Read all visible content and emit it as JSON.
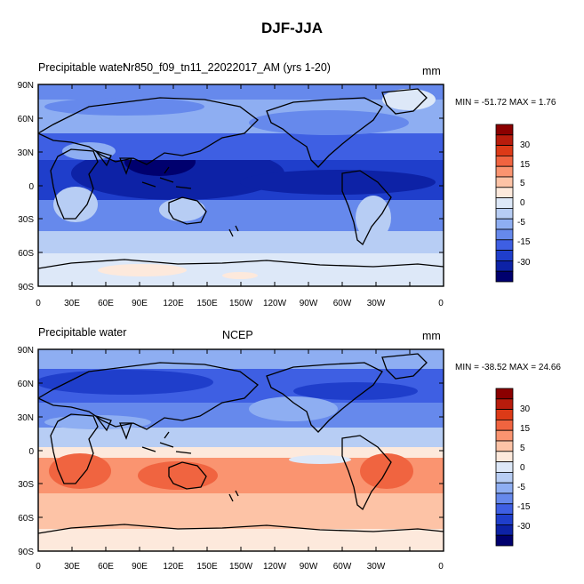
{
  "figure": {
    "title": "DJF-JJA"
  },
  "panels": [
    {
      "left_label": "Precipitable water",
      "center_label": "Nr850_f09_tn11_22022017_AM (yrs 1-20)",
      "units": "mm",
      "stats": "MIN = -51.72 MAX =   1.76",
      "colorbar_ticks": [
        "30",
        "15",
        "5",
        "0",
        "-5",
        "-15",
        "-30"
      ]
    },
    {
      "left_label": "Precipitable water",
      "center_label": "NCEP",
      "units": "mm",
      "stats": "MIN = -38.52 MAX =  24.66",
      "colorbar_ticks": [
        "30",
        "15",
        "5",
        "0",
        "-5",
        "-15",
        "-30"
      ]
    }
  ],
  "lat_ticks": [
    "90N",
    "60N",
    "30N",
    "0",
    "30S",
    "60S",
    "90S"
  ],
  "lon_ticks": [
    "0",
    "30E",
    "60E",
    "90E",
    "120E",
    "150E",
    "150W",
    "120W",
    "90W",
    "60W",
    "30W",
    "0"
  ],
  "colorbar_colors": [
    "#8b0000",
    "#b81c0c",
    "#dc3a17",
    "#f06440",
    "#fa9470",
    "#fdc3a6",
    "#fde9dc",
    "#dde8f8",
    "#b7cdf4",
    "#8eaef2",
    "#6689ec",
    "#3e5fe3",
    "#1f3ecb",
    "#0d22a6",
    "#00006e"
  ]
}
